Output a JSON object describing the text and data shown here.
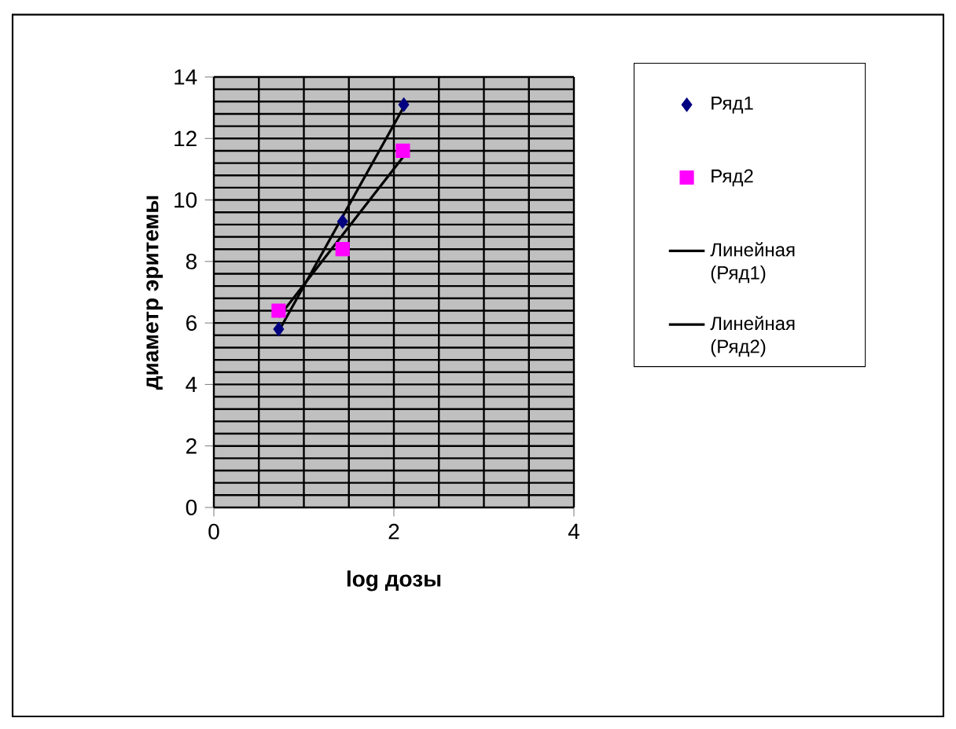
{
  "chart_data": {
    "type": "scatter",
    "xlabel": "log дозы",
    "ylabel": "диаметр эритемы",
    "xlim": [
      0,
      4
    ],
    "ylim": [
      0,
      14
    ],
    "xticks": [
      0,
      2,
      4
    ],
    "yticks": [
      0,
      2,
      4,
      6,
      8,
      10,
      12,
      14
    ],
    "grid": true,
    "legend": "right",
    "series": [
      {
        "name": "Ряд1",
        "marker": "diamond",
        "color": "#000080",
        "x": [
          0.72,
          1.43,
          2.11
        ],
        "values": [
          5.8,
          9.3,
          13.1
        ]
      },
      {
        "name": "Ряд2",
        "marker": "square",
        "color": "#ff00ff",
        "x": [
          0.72,
          1.43,
          2.1
        ],
        "values": [
          6.4,
          8.4,
          11.6
        ]
      },
      {
        "name": "Линейная (Ряд1)",
        "type": "line",
        "marker": "none",
        "color": "#000000",
        "x": [
          0.72,
          2.11
        ],
        "values": [
          5.73,
          13.03
        ]
      },
      {
        "name": "Линейная (Ряд2)",
        "type": "line",
        "marker": "none",
        "color": "#000000",
        "x": [
          0.72,
          2.1
        ],
        "values": [
          6.19,
          11.39
        ]
      }
    ]
  }
}
